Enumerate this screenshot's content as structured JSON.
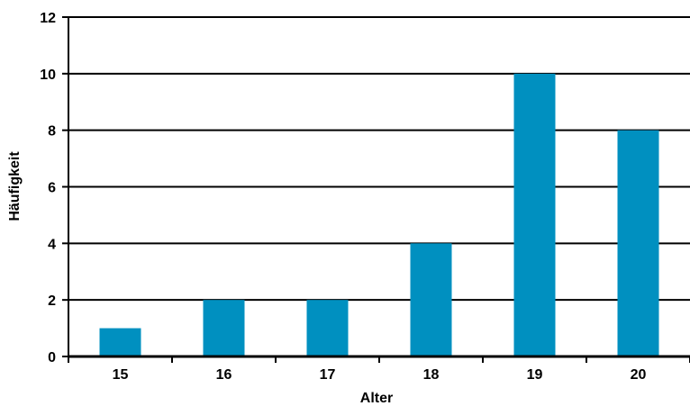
{
  "chart_data": {
    "type": "bar",
    "title": "",
    "xlabel": "Alter",
    "ylabel": "Häufigkeit",
    "categories": [
      "15",
      "16",
      "17",
      "18",
      "19",
      "20"
    ],
    "values": [
      1,
      2,
      2,
      4,
      10,
      8
    ],
    "ylim": [
      0,
      12
    ],
    "yticks": [
      "0",
      "2",
      "4",
      "6",
      "8",
      "10",
      "12"
    ],
    "grid": true,
    "legend": "none",
    "bar_color": "#0090C0",
    "axis_color": "#000000"
  }
}
